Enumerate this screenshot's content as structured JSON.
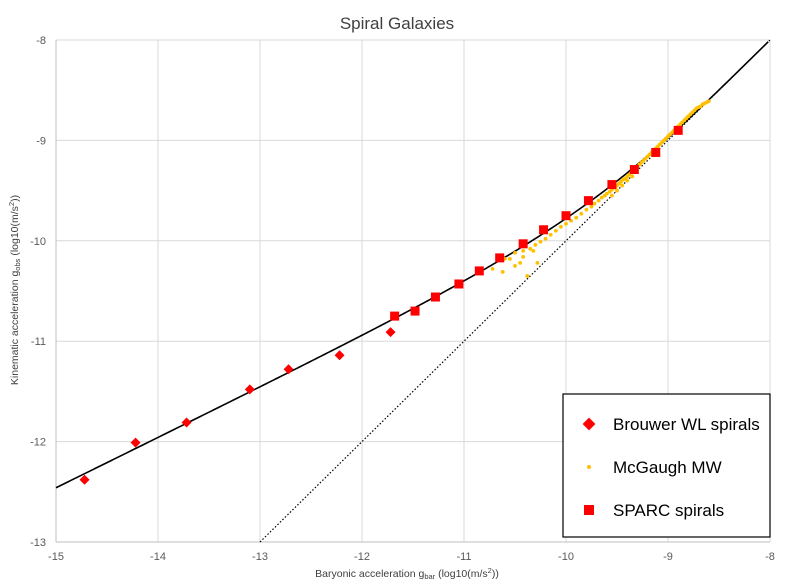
{
  "chart_data": {
    "type": "scatter",
    "title": "Spiral Galaxies",
    "xlabel": {
      "main": "Baryonic acceleration g",
      "sub": "bar",
      "tail": " (log10(m/s",
      "sup": "2",
      "end": "))"
    },
    "ylabel": {
      "main": "Kinematic acceleration g",
      "sub": "obs",
      "tail": " (log10(m/s",
      "sup": "2",
      "end": "))"
    },
    "xlim": [
      -15,
      -8
    ],
    "ylim": [
      -13,
      -8
    ],
    "x_ticks": [
      -15,
      -14,
      -13,
      -12,
      -11,
      -10,
      -9,
      -8
    ],
    "y_ticks": [
      -13,
      -12,
      -11,
      -10,
      -9,
      -8
    ],
    "x_tick_labels": [
      "-15",
      "-14",
      "-13",
      "-12",
      "-11",
      "-10",
      "-9",
      "-8"
    ],
    "y_tick_labels": [
      "-13",
      "-12",
      "-11",
      "-10",
      "-9",
      "-8"
    ],
    "grid": true,
    "legend_position": "bottom-right",
    "colors": {
      "brouwer": "#ff0000",
      "mcgaugh": "#ffc000",
      "sparc": "#ff0000",
      "fit": "#000000",
      "unity": "#000000"
    },
    "series": [
      {
        "name": "Brouwer WL spirals",
        "marker": "diamond",
        "x": [
          -14.72,
          -14.22,
          -13.72,
          -13.1,
          -12.72,
          -12.22,
          -11.72
        ],
        "y": [
          -12.38,
          -12.01,
          -11.81,
          -11.48,
          -11.28,
          -11.14,
          -10.91
        ]
      },
      {
        "name": "McGaugh MW",
        "marker": "dot",
        "x": [
          -10.72,
          -10.62,
          -10.55,
          -10.5,
          -10.45,
          -10.42,
          -10.38,
          -10.32,
          -10.28,
          -10.6,
          -10.5,
          -10.42,
          -10.35,
          -10.3,
          -10.25,
          -10.2,
          -10.15,
          -10.1,
          -10.05,
          -10.0,
          -9.95,
          -9.9,
          -9.85,
          -9.8,
          -9.75,
          -9.72,
          -9.68,
          -9.65,
          -9.62,
          -9.6,
          -9.57,
          -9.55,
          -9.52,
          -9.5,
          -9.48,
          -9.46,
          -9.44,
          -9.42,
          -9.4,
          -9.38,
          -9.36,
          -9.34,
          -9.32,
          -9.3,
          -9.28,
          -9.26,
          -9.24,
          -9.22,
          -9.2,
          -9.18,
          -9.16,
          -9.14,
          -9.12,
          -9.1,
          -9.08,
          -9.06,
          -9.04,
          -9.02,
          -9.0,
          -8.98,
          -8.96,
          -8.94,
          -8.92,
          -8.9,
          -8.88,
          -8.86,
          -8.84,
          -8.82,
          -8.8,
          -8.78,
          -8.76,
          -8.74,
          -8.72,
          -8.7,
          -8.68,
          -8.66,
          -8.64,
          -8.62,
          -8.6,
          -9.55,
          -9.5,
          -9.45,
          -9.4,
          -9.35
        ],
        "y": [
          -10.28,
          -10.31,
          -10.18,
          -10.25,
          -10.22,
          -10.16,
          -10.35,
          -10.1,
          -10.22,
          -10.18,
          -10.12,
          -10.1,
          -10.08,
          -10.04,
          -10.01,
          -9.98,
          -9.94,
          -9.9,
          -9.86,
          -9.83,
          -9.8,
          -9.77,
          -9.73,
          -9.69,
          -9.66,
          -9.63,
          -9.6,
          -9.57,
          -9.55,
          -9.53,
          -9.51,
          -9.49,
          -9.47,
          -9.45,
          -9.43,
          -9.41,
          -9.39,
          -9.38,
          -9.36,
          -9.34,
          -9.32,
          -9.3,
          -9.28,
          -9.26,
          -9.24,
          -9.22,
          -9.2,
          -9.18,
          -9.16,
          -9.14,
          -9.12,
          -9.1,
          -9.08,
          -9.06,
          -9.04,
          -9.02,
          -9.0,
          -8.98,
          -8.96,
          -8.94,
          -8.92,
          -8.9,
          -8.88,
          -8.86,
          -8.84,
          -8.82,
          -8.8,
          -8.78,
          -8.76,
          -8.74,
          -8.72,
          -8.7,
          -8.68,
          -8.67,
          -8.66,
          -8.64,
          -8.63,
          -8.62,
          -8.61,
          -9.55,
          -9.5,
          -9.45,
          -9.4,
          -9.36
        ]
      },
      {
        "name": "SPARC spirals",
        "marker": "square",
        "x": [
          -11.68,
          -11.48,
          -11.28,
          -11.05,
          -10.85,
          -10.65,
          -10.42,
          -10.22,
          -10.0,
          -9.78,
          -9.55,
          -9.33,
          -9.12,
          -8.9
        ],
        "y": [
          -10.75,
          -10.7,
          -10.56,
          -10.43,
          -10.3,
          -10.17,
          -10.03,
          -9.89,
          -9.75,
          -9.6,
          -9.44,
          -9.29,
          -9.12,
          -8.9
        ]
      }
    ]
  }
}
